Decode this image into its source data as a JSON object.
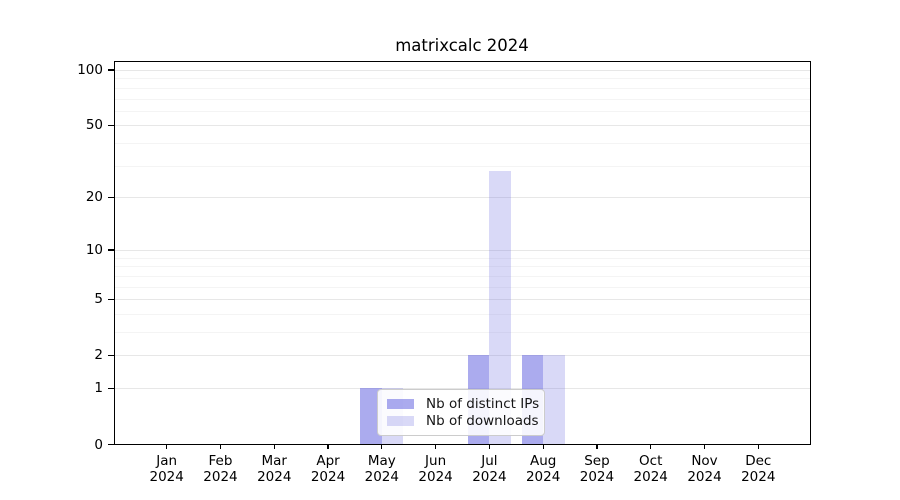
{
  "chart_data": {
    "type": "bar",
    "title": "matrixcalc 2024",
    "categories": [
      "Jan",
      "Feb",
      "Mar",
      "Apr",
      "May",
      "Jun",
      "Jul",
      "Aug",
      "Sep",
      "Oct",
      "Nov",
      "Dec"
    ],
    "x_tick_year": "2024",
    "series": [
      {
        "name": "Nb of distinct IPs",
        "values": [
          0,
          0,
          0,
          0,
          1,
          0,
          2,
          2,
          0,
          0,
          0,
          0
        ],
        "color": "rgba(102,102,224,0.55)"
      },
      {
        "name": "Nb of downloads",
        "values": [
          0,
          0,
          0,
          0,
          1,
          0,
          28,
          2,
          0,
          0,
          0,
          0
        ],
        "color": "rgba(102,102,224,0.25)"
      }
    ],
    "y_scale": "log1p",
    "y_ticks": [
      0,
      1,
      2,
      5,
      10,
      20,
      50,
      100
    ],
    "y_minor_gridlines": [
      3,
      4,
      6,
      7,
      8,
      9,
      30,
      40,
      60,
      70,
      80,
      90
    ],
    "ylim": [
      0,
      112.6
    ],
    "grid": true,
    "legend_position": "inside-bottom-center"
  },
  "colors": {
    "grid_major": "#e7e7e7",
    "grid_minor": "#f4f4f4",
    "axis": "#000000",
    "text": "#000000",
    "legend_border": "#cccccc",
    "legend_bg": "rgba(255,255,255,0.88)"
  }
}
